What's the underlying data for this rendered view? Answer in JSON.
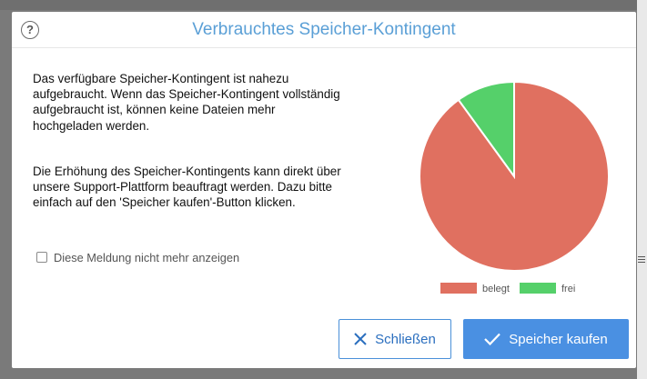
{
  "dialog": {
    "title": "Verbrauchtes Speicher-Kontingent",
    "help_icon": "question-circle-icon",
    "paragraph1": "Das verfügbare Speicher-Kontingent ist nahezu aufgebraucht. Wenn das Speicher-Kontingent vollständig aufgebraucht ist, können keine Dateien mehr hochgeladen werden.",
    "paragraph2": "Die Erhöhung des Speicher-Kontingents kann direkt über unsere Support-Plattform beauftragt werden. Dazu bitte einfach auf den 'Speicher kaufen'-Button klicken.",
    "checkbox_label": "Diese Meldung nicht mehr anzeigen",
    "checkbox_checked": false,
    "close_label": "Schließen",
    "close_icon": "x-icon",
    "buy_label": "Speicher kaufen",
    "buy_icon": "checkmark-icon"
  },
  "colors": {
    "title": "#5a9fd6",
    "accent": "#4a90e2",
    "used": "#e07060",
    "free": "#55d06a"
  },
  "chart_data": {
    "type": "pie",
    "categories": [
      "belegt",
      "frei"
    ],
    "values": [
      90,
      10
    ],
    "colors": [
      "#e07060",
      "#55d06a"
    ],
    "legend_position": "bottom"
  }
}
